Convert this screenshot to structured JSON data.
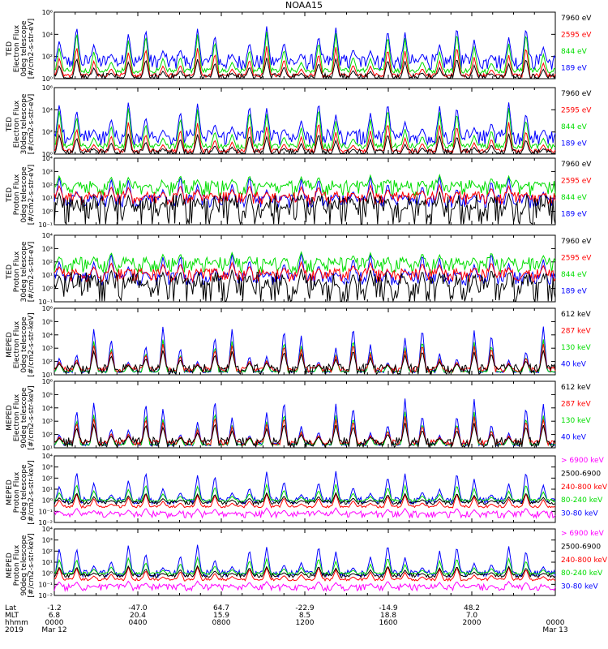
{
  "title": "NOAA15",
  "colors": {
    "black": "#000000",
    "red": "#ff0000",
    "green": "#00dd00",
    "blue": "#0000ff",
    "magenta": "#ff00ff"
  },
  "x_axis": {
    "row_labels": [
      "Lat",
      "MLT",
      "hhmm",
      "2019"
    ],
    "ticks": [
      {
        "lat": "-1.2",
        "mlt": "6.8",
        "hhmm": "0000",
        "date": "Mar 12"
      },
      {
        "lat": "-47.0",
        "mlt": "20.4",
        "hhmm": "0400",
        "date": ""
      },
      {
        "lat": "64.7",
        "mlt": "15.9",
        "hhmm": "0800",
        "date": ""
      },
      {
        "lat": "-22.9",
        "mlt": "8.5",
        "hhmm": "1200",
        "date": ""
      },
      {
        "lat": "-14.9",
        "mlt": "18.8",
        "hhmm": "1600",
        "date": ""
      },
      {
        "lat": "48.2",
        "mlt": "7.0",
        "hhmm": "2000",
        "date": ""
      },
      {
        "lat": "",
        "mlt": "",
        "hhmm": "0000",
        "date": "Mar 13"
      }
    ]
  },
  "chart_data": [
    {
      "type": "line",
      "ylabel": [
        "TED",
        "Electron Flux",
        "0deg telescope",
        "[#/cm2-s-str-eV]"
      ],
      "ylim_exp": [
        0,
        6
      ],
      "log": true,
      "yticks": [
        "10⁰",
        "10²",
        "10⁴",
        "10⁶"
      ],
      "series": [
        {
          "name": "7960 eV",
          "color": "black"
        },
        {
          "name": "2595 eV",
          "color": "red"
        },
        {
          "name": "844 eV",
          "color": "green"
        },
        {
          "name": "189 eV",
          "color": "blue"
        }
      ]
    },
    {
      "type": "line",
      "ylabel": [
        "TED",
        "Electron Flux",
        "30deg telescope",
        "[#/cm2-s-str-eV]"
      ],
      "ylim_exp": [
        0,
        6
      ],
      "log": true,
      "yticks": [
        "10⁰",
        "10²",
        "10⁴",
        "10⁶"
      ],
      "series": [
        {
          "name": "7960 eV",
          "color": "black"
        },
        {
          "name": "2595 eV",
          "color": "red"
        },
        {
          "name": "844 eV",
          "color": "green"
        },
        {
          "name": "189 eV",
          "color": "blue"
        }
      ]
    },
    {
      "type": "line",
      "ylabel": [
        "TED",
        "Proton Flux",
        "0deg telescope",
        "[#/cm2-s-str-eV]"
      ],
      "ylim_exp": [
        -1,
        4
      ],
      "log": true,
      "yticks": [
        "10⁻¹",
        "10⁰",
        "10¹",
        "10²",
        "10³",
        "10⁴"
      ],
      "series": [
        {
          "name": "7960 eV",
          "color": "black"
        },
        {
          "name": "2595 eV",
          "color": "red"
        },
        {
          "name": "844 eV",
          "color": "green"
        },
        {
          "name": "189 eV",
          "color": "blue"
        }
      ]
    },
    {
      "type": "line",
      "ylabel": [
        "TED",
        "Proton Flux",
        "30deg telescope",
        "[#/cm2-s-str-eV]"
      ],
      "ylim_exp": [
        -1,
        4
      ],
      "log": true,
      "yticks": [
        "10⁻¹",
        "10⁰",
        "10¹",
        "10²",
        "10³",
        "10⁴"
      ],
      "series": [
        {
          "name": "7960 eV",
          "color": "black"
        },
        {
          "name": "2595 eV",
          "color": "red"
        },
        {
          "name": "844 eV",
          "color": "green"
        },
        {
          "name": "189 eV",
          "color": "blue"
        }
      ]
    },
    {
      "type": "line",
      "ylabel": [
        "MEPED",
        "Electron Flux",
        "0deg telescope",
        "[#/cm2-s-str-keV]"
      ],
      "ylim_exp": [
        1,
        6
      ],
      "log": true,
      "yticks": [
        "10¹",
        "10²",
        "10³",
        "10⁴",
        "10⁵",
        "10⁶"
      ],
      "series": [
        {
          "name": "612 keV",
          "color": "black"
        },
        {
          "name": "287 keV",
          "color": "red"
        },
        {
          "name": "130 keV",
          "color": "green"
        },
        {
          "name": "40 keV",
          "color": "blue"
        }
      ]
    },
    {
      "type": "line",
      "ylabel": [
        "MEPED",
        "Electron Flux",
        "90deg telescope",
        "[#/cm2-s-str-keV]"
      ],
      "ylim_exp": [
        1,
        6
      ],
      "log": true,
      "yticks": [
        "10¹",
        "10²",
        "10³",
        "10⁴",
        "10⁵",
        "10⁶"
      ],
      "series": [
        {
          "name": "612 keV",
          "color": "black"
        },
        {
          "name": "287 keV",
          "color": "red"
        },
        {
          "name": "130 keV",
          "color": "green"
        },
        {
          "name": "40 keV",
          "color": "blue"
        }
      ]
    },
    {
      "type": "line",
      "ylabel": [
        "MEPED",
        "Proton Flux",
        "0deg telescope",
        "[#/cm2-s-str-keV]"
      ],
      "ylim_exp": [
        -2,
        4
      ],
      "log": true,
      "yticks": [
        "10⁻²",
        "10⁻¹",
        "10⁰",
        "10¹",
        "10²",
        "10³",
        "10⁴"
      ],
      "series": [
        {
          "name": "> 6900 keV",
          "color": "magenta"
        },
        {
          "name": "2500-6900",
          "color": "black"
        },
        {
          "name": "240-800 keV",
          "color": "red"
        },
        {
          "name": "80-240 keV",
          "color": "green"
        },
        {
          "name": "30-80 keV",
          "color": "blue"
        }
      ]
    },
    {
      "type": "line",
      "ylabel": [
        "MEPED",
        "Proton Flux",
        "90deg telescope",
        "[#/cm2-s-str-keV]"
      ],
      "ylim_exp": [
        -2,
        4
      ],
      "log": true,
      "yticks": [
        "10⁻²",
        "10⁻¹",
        "10⁰",
        "10¹",
        "10²",
        "10³",
        "10⁴"
      ],
      "series": [
        {
          "name": "> 6900 keV",
          "color": "magenta"
        },
        {
          "name": "2500-6900",
          "color": "black"
        },
        {
          "name": "240-800 keV",
          "color": "red"
        },
        {
          "name": "80-240 keV",
          "color": "green"
        },
        {
          "name": "30-80 keV",
          "color": "blue"
        }
      ]
    }
  ]
}
